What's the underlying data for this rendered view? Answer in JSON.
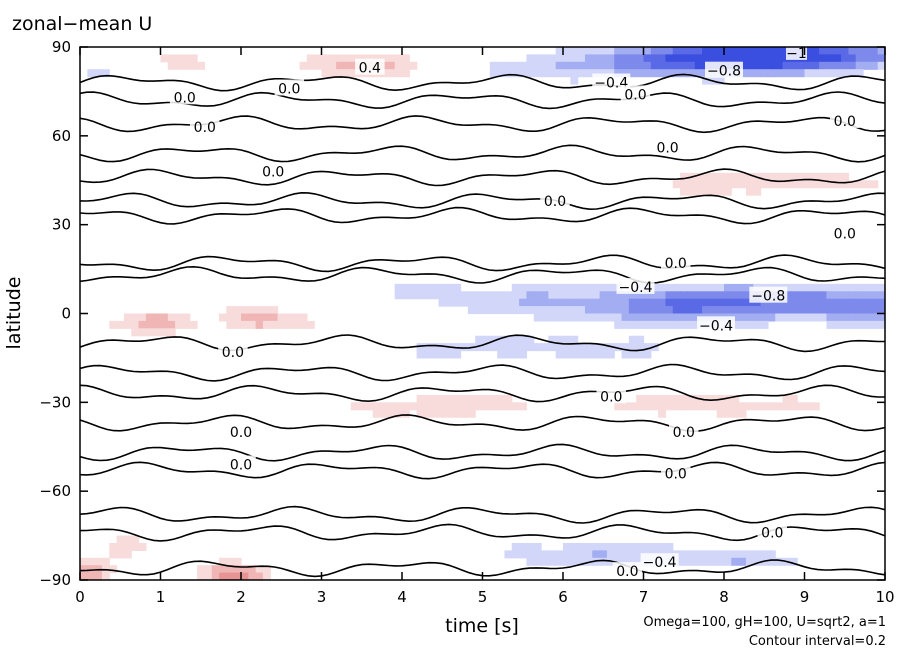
{
  "chart_data": {
    "type": "contour",
    "title": "zonal−mean U",
    "xlabel": "time [s]",
    "ylabel": "latitude",
    "xlim": [
      0,
      10
    ],
    "ylim": [
      -90,
      90
    ],
    "x_ticks": [
      "0",
      "1",
      "2",
      "3",
      "4",
      "5",
      "6",
      "7",
      "8",
      "9",
      "10"
    ],
    "y_ticks": [
      {
        "value": -90,
        "label": "−90"
      },
      {
        "value": -60,
        "label": "−60"
      },
      {
        "value": -30,
        "label": "−30"
      },
      {
        "value": 0,
        "label": "0"
      },
      {
        "value": 30,
        "label": "30"
      },
      {
        "value": 60,
        "label": "60"
      },
      {
        "value": 90,
        "label": "90"
      }
    ],
    "annotations": [
      "Omega=100, gH=100, U=sqrt2, a=1",
      "Contour interval=0.2"
    ],
    "contour_interval": 0.2,
    "colors": {
      "positive": "#e06a6a",
      "negative": "#4a5ee0",
      "zero_line": "#000000"
    },
    "contour_labels": [
      {
        "t": 3.6,
        "lat": 83,
        "text": "0.4"
      },
      {
        "t": 2.6,
        "lat": 76,
        "text": "0.0"
      },
      {
        "t": 1.3,
        "lat": 73,
        "text": "0.0"
      },
      {
        "t": 1.55,
        "lat": 63,
        "text": "0.0"
      },
      {
        "t": 2.4,
        "lat": 48,
        "text": "0.0"
      },
      {
        "t": 8.0,
        "lat": 82,
        "text": "−0.8"
      },
      {
        "t": 8.9,
        "lat": 88,
        "text": "−1"
      },
      {
        "t": 6.6,
        "lat": 78,
        "text": "−0.4"
      },
      {
        "t": 6.9,
        "lat": 74,
        "text": "0.0"
      },
      {
        "t": 9.5,
        "lat": 65,
        "text": "0.0"
      },
      {
        "t": 7.3,
        "lat": 56,
        "text": "0.0"
      },
      {
        "t": 5.9,
        "lat": 38,
        "text": "0.0"
      },
      {
        "t": 9.5,
        "lat": 27,
        "text": "0.0"
      },
      {
        "t": 7.4,
        "lat": 17,
        "text": "0.0"
      },
      {
        "t": 6.9,
        "lat": 9,
        "text": "−0.4"
      },
      {
        "t": 8.55,
        "lat": 6,
        "text": "−0.8"
      },
      {
        "t": 7.9,
        "lat": -4,
        "text": "−0.4"
      },
      {
        "t": 1.9,
        "lat": -13,
        "text": "0.0"
      },
      {
        "t": 6.6,
        "lat": -28,
        "text": "0.0"
      },
      {
        "t": 2.0,
        "lat": -40,
        "text": "0.0"
      },
      {
        "t": 7.5,
        "lat": -40,
        "text": "0.0"
      },
      {
        "t": 2.0,
        "lat": -51,
        "text": "0.0"
      },
      {
        "t": 7.4,
        "lat": -54,
        "text": "0.0"
      },
      {
        "t": 8.6,
        "lat": -74,
        "text": "0.0"
      },
      {
        "t": 7.2,
        "lat": -84,
        "text": "−0.4"
      },
      {
        "t": 6.8,
        "lat": -87,
        "text": "0.0"
      }
    ]
  }
}
